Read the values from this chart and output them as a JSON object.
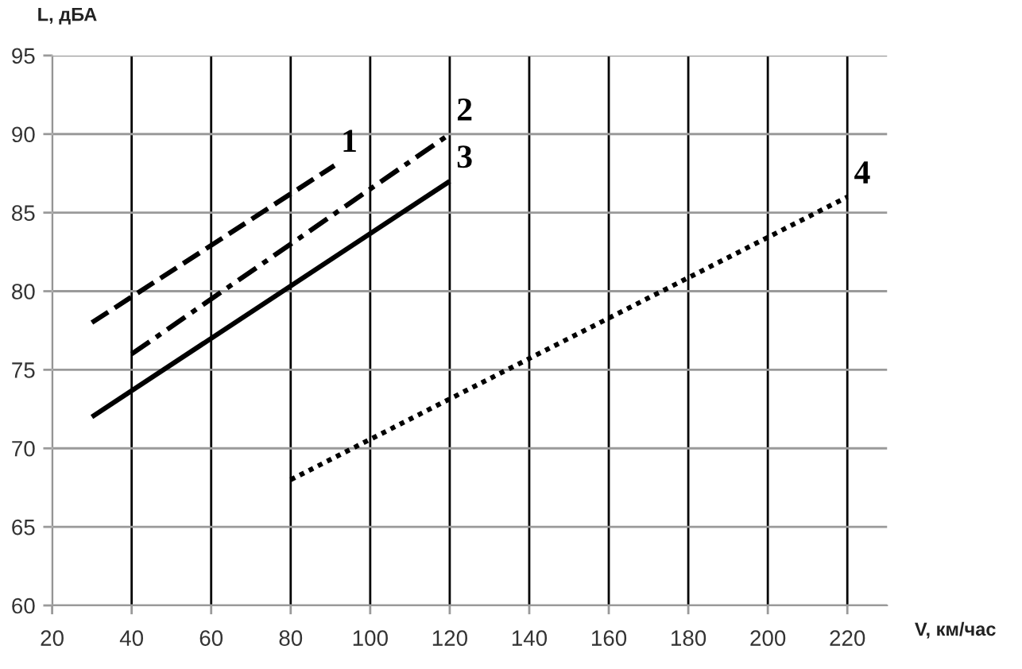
{
  "chart_data": {
    "type": "line",
    "xlabel": "V, км/час",
    "ylabel": "L, дБА",
    "series": [
      {
        "name": "1",
        "color": "#000000",
        "x": [
          30,
          91
        ],
        "values": [
          78,
          88
        ],
        "line_style": "dashed"
      },
      {
        "name": "2",
        "color": "#000000",
        "x": [
          40,
          120
        ],
        "values": [
          76,
          90
        ],
        "line_style": "dashdot"
      },
      {
        "name": "3",
        "color": "#000000",
        "x": [
          30,
          120
        ],
        "values": [
          72,
          87
        ],
        "line_style": "solid"
      },
      {
        "name": "4",
        "color": "#000000",
        "x": [
          80,
          220
        ],
        "values": [
          68,
          86
        ],
        "line_style": "dotted"
      }
    ],
    "xlim": [
      20,
      230
    ],
    "xticks": [
      20,
      40,
      60,
      80,
      100,
      120,
      140,
      160,
      180,
      200,
      220
    ],
    "ylim": [
      60,
      95
    ],
    "yticks": [
      60,
      65,
      70,
      75,
      80,
      85,
      90,
      95
    ],
    "grid": true
  }
}
